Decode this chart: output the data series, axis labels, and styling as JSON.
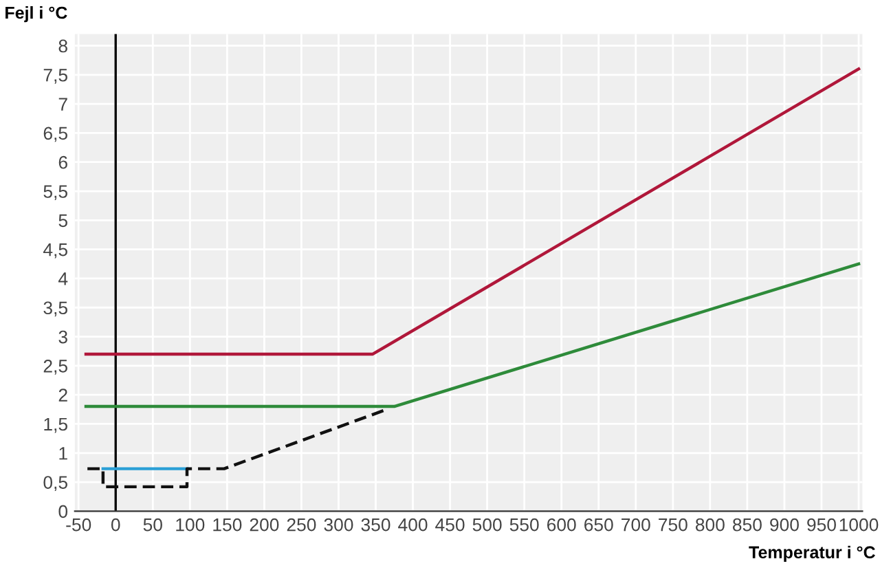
{
  "chart_data": {
    "type": "line",
    "ylabel": "Fejl i °C",
    "xlabel": "Temperatur i °C",
    "series": [
      {
        "color": "#b0173a",
        "x": [
          -40,
          346,
          1000
        ],
        "values": [
          2.7,
          2.7,
          7.6
        ]
      },
      {
        "color": "#2e8b3a",
        "x": [
          -40,
          375,
          1000
        ],
        "values": [
          1.8,
          1.8,
          4.25
        ]
      },
      {
        "color": "#2a9fd6",
        "x": [
          -17,
          96
        ],
        "values": [
          0.73,
          0.73
        ]
      },
      {
        "color": "#111111",
        "line_style": "dashed",
        "x": [
          -38,
          -17,
          -17,
          96,
          96,
          146,
          365
        ],
        "values": [
          0.73,
          0.73,
          0.42,
          0.42,
          0.73,
          0.73,
          1.75
        ]
      }
    ],
    "xlim": [
      -55,
      1005
    ],
    "ylim": [
      0,
      8.2
    ],
    "xticks": [
      -50,
      0,
      50,
      100,
      150,
      200,
      250,
      300,
      350,
      400,
      450,
      500,
      550,
      600,
      650,
      700,
      750,
      800,
      850,
      900,
      950,
      1000
    ],
    "yticks": [
      0,
      {
        "value": 0.5,
        "label": "0,5"
      },
      1,
      {
        "value": 1.5,
        "label": "1,5"
      },
      2,
      {
        "value": 2.5,
        "label": "2,5"
      },
      3,
      {
        "value": 3.5,
        "label": "3,5"
      },
      4,
      {
        "value": 4.5,
        "label": "4,5"
      },
      5,
      {
        "value": 5.5,
        "label": "5,5"
      },
      6,
      {
        "value": 6.5,
        "label": "6,5"
      },
      7,
      {
        "value": 7.5,
        "label": "7,5"
      },
      8
    ],
    "ref_lines": [
      {
        "axis": "x",
        "value": 0,
        "color": "#000000"
      }
    ],
    "grid": true,
    "line_style": "solid",
    "marker": "none"
  }
}
